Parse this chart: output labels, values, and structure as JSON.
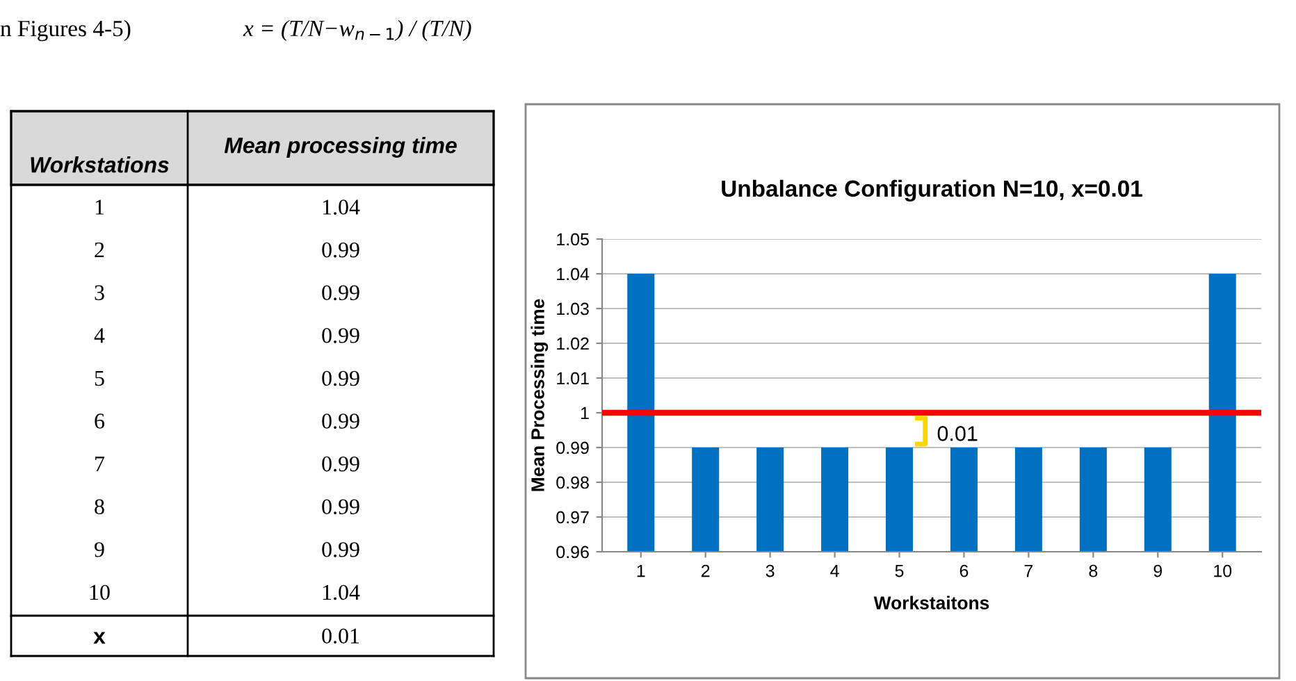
{
  "chart_data": {
    "type": "bar",
    "title": "Unbalance Configuration N=10, x=0.01",
    "xlabel": "Workstaitons",
    "ylabel": "Mean Processing time",
    "categories": [
      "1",
      "2",
      "3",
      "4",
      "5",
      "6",
      "7",
      "8",
      "9",
      "10"
    ],
    "values": [
      1.04,
      0.99,
      0.99,
      0.99,
      0.99,
      0.99,
      0.99,
      0.99,
      0.99,
      1.04
    ],
    "color": "#0070c0",
    "ylim": [
      0.96,
      1.05
    ],
    "yticks": [
      0.96,
      0.97,
      0.98,
      0.99,
      {
        "value": 1,
        "label": "1"
      },
      1.01,
      1.02,
      1.03,
      1.04,
      1.05
    ],
    "grid": "y",
    "ref_lines": [
      {
        "axis": "y",
        "value": 1,
        "color": "#ff0000"
      }
    ],
    "annotations": [
      "0.01",
      "Workstations",
      "Mean processing time",
      "1.04",
      "0.99",
      "0.99",
      "0.99",
      "0.99",
      "0.99",
      "0.99",
      "0.99",
      "0.99",
      "1.04",
      "x",
      "0.01",
      "n Figures 4-5)",
      "x = (T/N−w$_{n−1}$) / (T/N)"
    ]
  }
}
